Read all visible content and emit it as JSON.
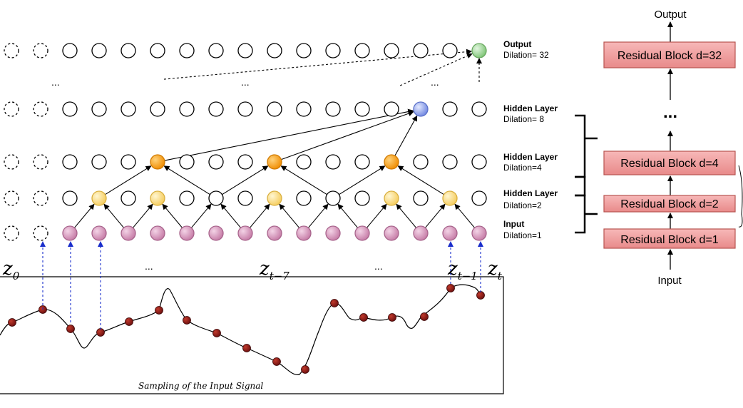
{
  "layers": [
    {
      "title": "Output",
      "dilation": "Dilation= 32"
    },
    {
      "title": "Hidden Layer",
      "dilation": "Dilation= 8"
    },
    {
      "title": "Hidden Layer",
      "dilation": "Dilation=4"
    },
    {
      "title": "Hidden Layer",
      "dilation": "Dilation=2"
    },
    {
      "title": "Input",
      "dilation": "Dilation=1"
    }
  ],
  "ellipsis": "...",
  "time_labels": {
    "z0": {
      "base": "z",
      "sub": "0"
    },
    "zt7": {
      "base": "z",
      "sub": "t−7"
    },
    "zt1": {
      "base": "z",
      "sub": "t−1"
    },
    "zt": {
      "base": "z",
      "sub": "t"
    }
  },
  "signal_caption": "Sampling of the Input Signal",
  "stack": {
    "output_label": "Output",
    "input_label": "Input",
    "blocks": [
      "Residual Block  d=32",
      "Residual Block  d=4",
      "Residual Block  d=2",
      "Residual Block  d=1"
    ]
  },
  "colors": {
    "input_node": "#d9a3c4",
    "dilation2_node": "#ffe08a",
    "dilation4_node": "#ffa726",
    "hidden8_node": "#9fb3f0",
    "output_node": "#9ed99a",
    "signal_point": "#8b1a1a",
    "block_fill": "#f0a0a0",
    "block_stroke": "#b85450"
  }
}
